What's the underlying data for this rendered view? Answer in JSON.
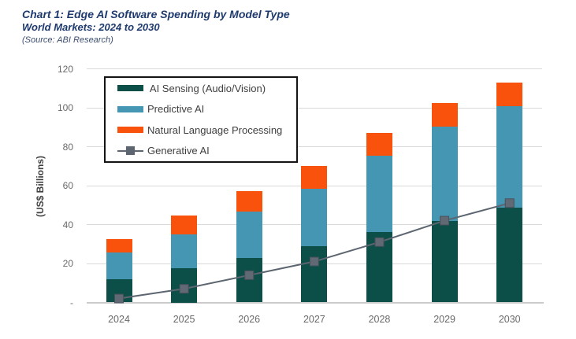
{
  "header": {
    "title": "Chart 1: Edge AI Software Spending by Model Type",
    "subtitle": "World Markets: 2024 to 2030",
    "source": "(Source: ABI Research)"
  },
  "y_axis": {
    "title": "(US$ Billions)",
    "tick_labels": [
      "-",
      "20",
      "40",
      "60",
      "80",
      "100",
      "120"
    ],
    "tick_values": [
      0,
      20,
      40,
      60,
      80,
      100,
      120
    ]
  },
  "legend": {
    "items": [
      {
        "label": " AI Sensing (Audio/Vision)",
        "type": "rect",
        "color": "#0b4f48"
      },
      {
        "label": "Predictive AI",
        "type": "rect",
        "color": "#4496b2"
      },
      {
        "label": "Natural Language Processing",
        "type": "rect",
        "color": "#f9520d"
      },
      {
        "label": "Generative AI",
        "type": "line-marker",
        "color": "#5c6570"
      }
    ]
  },
  "chart_data": {
    "type": "bar",
    "subtype": "stacked-bars-with-line-overlay",
    "title": "Chart 1: Edge AI Software Spending by Model Type",
    "xlabel": "",
    "ylabel": "(US$ Billions)",
    "categories": [
      "2024",
      "2025",
      "2026",
      "2027",
      "2028",
      "2029",
      "2030"
    ],
    "series": [
      {
        "name": "AI Sensing (Audio/Vision)",
        "type": "bar",
        "color": "#0b4f48",
        "values": [
          12,
          17.5,
          23,
          29,
          36,
          42,
          48.5
        ]
      },
      {
        "name": "Predictive AI",
        "type": "bar",
        "color": "#4496b2",
        "values": [
          13.5,
          17.5,
          23.5,
          29.5,
          39.5,
          48.5,
          52.5
        ]
      },
      {
        "name": "Natural Language Processing",
        "type": "bar",
        "color": "#f9520d",
        "values": [
          7,
          9.5,
          10.5,
          11.5,
          11.5,
          12,
          12
        ]
      },
      {
        "name": "Generative AI",
        "type": "line",
        "color": "#5c6570",
        "marker": "square",
        "values": [
          2,
          7,
          14,
          21,
          31,
          42,
          51
        ]
      }
    ],
    "stacked_totals": [
      32.5,
      44.5,
      57,
      70,
      87,
      102.5,
      113
    ],
    "ylim": [
      0,
      120
    ],
    "ytick_interval": 20,
    "grid": "horizontal",
    "legend_position": "upper-left-inside"
  },
  "style": {
    "grid_color": "#d9d9d9",
    "axis_line_color": "#cbcbcb",
    "tick_label_color": "#696969",
    "axis_title_color": "#404040",
    "title_color": "#1e3a6e",
    "source_color": "#3d4e70",
    "legend_text_color": "#3f3f3f",
    "line_color": "#5c6570",
    "marker_fill_color": "#606974",
    "marker_border_color": "#49505b",
    "background": "#ffffff"
  }
}
